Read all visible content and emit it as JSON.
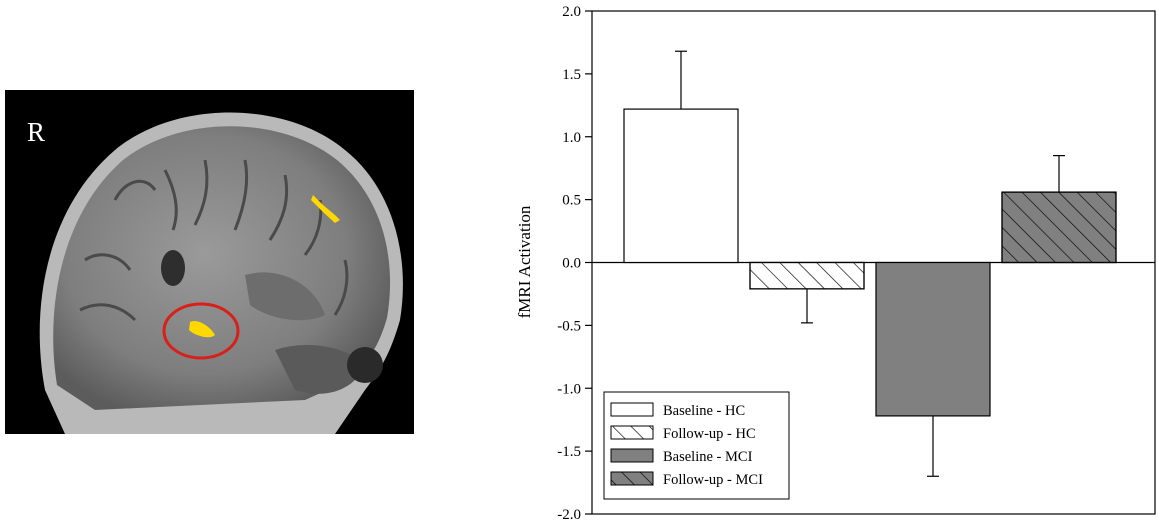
{
  "image_panel": {
    "orientation_label": "R",
    "colors": {
      "background": "#000000",
      "activation": "#ffd800",
      "highlight_circle": "#d8201a"
    }
  },
  "chart_data": {
    "type": "bar",
    "ylabel": "fMRI Activation",
    "xlabel": "",
    "ylim": [
      -2.0,
      2.0
    ],
    "yticks": [
      "2.0",
      "1.5",
      "1.0",
      "0.5",
      "0.0",
      "-0.5",
      "-1.0",
      "-1.5",
      "-2.0"
    ],
    "ytick_values": [
      2.0,
      1.5,
      1.0,
      0.5,
      0.0,
      -0.5,
      -1.0,
      -1.5,
      -2.0
    ],
    "series": [
      {
        "name": "Baseline - HC",
        "value": 1.22,
        "error": 0.46,
        "fill": "#ffffff",
        "hatch": false
      },
      {
        "name": "Follow-up - HC",
        "value": -0.21,
        "error": 0.27,
        "fill": "#ffffff",
        "hatch": true
      },
      {
        "name": "Baseline - MCI",
        "value": -1.22,
        "error": 0.48,
        "fill": "#808080",
        "hatch": false
      },
      {
        "name": "Follow-up - MCI",
        "value": 0.56,
        "error": 0.29,
        "fill": "#808080",
        "hatch": true
      }
    ],
    "legend_position": "bottom-left",
    "grid": false
  }
}
